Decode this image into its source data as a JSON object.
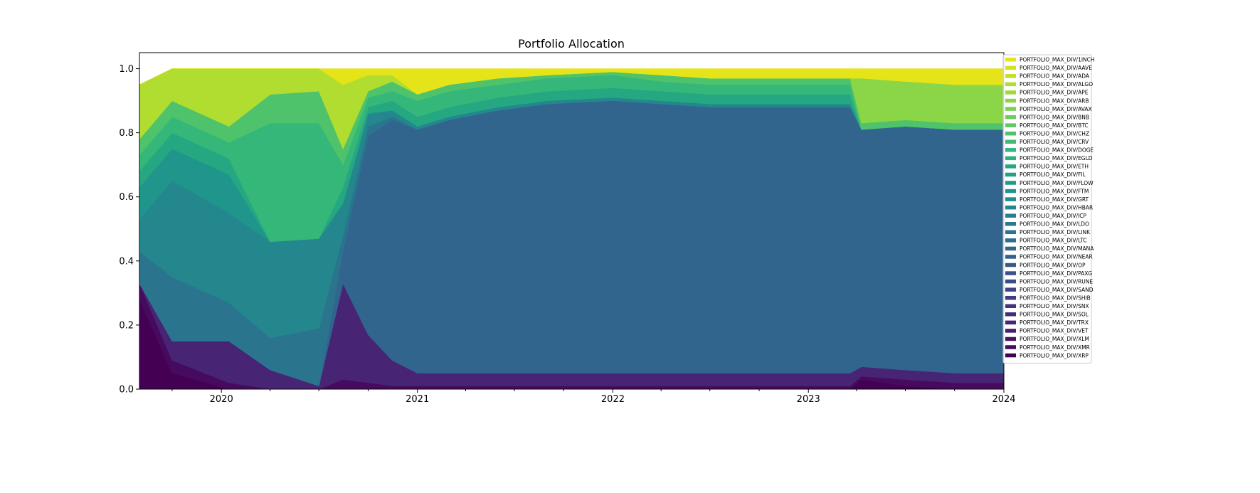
{
  "chart_data": {
    "type": "area",
    "stacked": true,
    "normalized": true,
    "title": "Portfolio Allocation",
    "xlabel": "",
    "ylabel": "",
    "xlim": [
      "2019-08-01",
      "2024-01-01"
    ],
    "ylim": [
      0,
      1.05
    ],
    "x_ticks": [
      "2020",
      "2021",
      "2022",
      "2023",
      "2024"
    ],
    "y_ticks": [
      "0.0",
      "0.2",
      "0.4",
      "0.6",
      "0.8",
      "1.0"
    ],
    "grid": false,
    "legend_position": "right",
    "dates": [
      "2019-08-01",
      "2019-10-01",
      "2020-01-15",
      "2020-04-01",
      "2020-07-01",
      "2020-08-15",
      "2020-10-01",
      "2020-11-15",
      "2021-01-01",
      "2021-03-01",
      "2021-06-01",
      "2021-09-01",
      "2022-01-01",
      "2022-04-01",
      "2022-07-01",
      "2022-10-01",
      "2023-01-01",
      "2023-03-20",
      "2023-04-10",
      "2023-07-01",
      "2023-10-01",
      "2024-01-01"
    ],
    "series": [
      {
        "name": "PORTFOLIO_MAX_DIV/XRP",
        "values": [
          0.28,
          0.05,
          0.0,
          0.0,
          0.0,
          0.0,
          0.0,
          0.0,
          0.0,
          0.0,
          0.0,
          0.0,
          0.0,
          0.0,
          0.0,
          0.0,
          0.0,
          0.0,
          0.03,
          0.01,
          0.0,
          0.0
        ]
      },
      {
        "name": "PORTFOLIO_MAX_DIV/XMR",
        "values": [
          0.05,
          0.04,
          0.02,
          0.0,
          0.0,
          0.03,
          0.02,
          0.01,
          0.01,
          0.01,
          0.01,
          0.01,
          0.01,
          0.01,
          0.01,
          0.01,
          0.01,
          0.01,
          0.01,
          0.02,
          0.02,
          0.02
        ]
      },
      {
        "name": "PORTFOLIO_MAX_DIV/XLM",
        "values": [
          0.0,
          0.0,
          0.0,
          0.0,
          0.0,
          0.0,
          0.0,
          0.0,
          0.0,
          0.0,
          0.0,
          0.0,
          0.0,
          0.0,
          0.0,
          0.0,
          0.0,
          0.0,
          0.0,
          0.0,
          0.0,
          0.0
        ]
      },
      {
        "name": "PORTFOLIO_MAX_DIV/VET",
        "values": [
          0.0,
          0.0,
          0.0,
          0.0,
          0.0,
          0.0,
          0.0,
          0.0,
          0.0,
          0.0,
          0.0,
          0.0,
          0.0,
          0.0,
          0.0,
          0.0,
          0.0,
          0.0,
          0.0,
          0.0,
          0.0,
          0.0
        ]
      },
      {
        "name": "PORTFOLIO_MAX_DIV/TRX",
        "values": [
          0.0,
          0.06,
          0.13,
          0.06,
          0.01,
          0.3,
          0.15,
          0.08,
          0.04,
          0.04,
          0.04,
          0.04,
          0.04,
          0.04,
          0.04,
          0.04,
          0.04,
          0.04,
          0.03,
          0.03,
          0.03,
          0.03
        ]
      },
      {
        "name": "PORTFOLIO_MAX_DIV/SOL",
        "values": [
          0.0,
          0.0,
          0.0,
          0.0,
          0.0,
          0.0,
          0.0,
          0.0,
          0.0,
          0.0,
          0.0,
          0.0,
          0.0,
          0.0,
          0.0,
          0.0,
          0.0,
          0.0,
          0.0,
          0.0,
          0.0,
          0.0
        ]
      },
      {
        "name": "PORTFOLIO_MAX_DIV/SNX",
        "values": [
          0.0,
          0.0,
          0.0,
          0.0,
          0.0,
          0.0,
          0.0,
          0.0,
          0.0,
          0.0,
          0.0,
          0.0,
          0.0,
          0.0,
          0.0,
          0.0,
          0.0,
          0.0,
          0.0,
          0.0,
          0.0,
          0.0
        ]
      },
      {
        "name": "PORTFOLIO_MAX_DIV/SHIB",
        "values": [
          0.0,
          0.0,
          0.0,
          0.0,
          0.0,
          0.0,
          0.0,
          0.0,
          0.0,
          0.0,
          0.0,
          0.0,
          0.0,
          0.0,
          0.0,
          0.0,
          0.0,
          0.0,
          0.0,
          0.0,
          0.0,
          0.0
        ]
      },
      {
        "name": "PORTFOLIO_MAX_DIV/SAND",
        "values": [
          0.0,
          0.0,
          0.0,
          0.0,
          0.0,
          0.0,
          0.0,
          0.0,
          0.0,
          0.0,
          0.0,
          0.0,
          0.0,
          0.0,
          0.0,
          0.0,
          0.0,
          0.0,
          0.0,
          0.0,
          0.0,
          0.0
        ]
      },
      {
        "name": "PORTFOLIO_MAX_DIV/RUNE",
        "values": [
          0.0,
          0.0,
          0.0,
          0.0,
          0.0,
          0.0,
          0.0,
          0.0,
          0.0,
          0.0,
          0.0,
          0.0,
          0.0,
          0.0,
          0.0,
          0.0,
          0.0,
          0.0,
          0.0,
          0.0,
          0.0,
          0.0
        ]
      },
      {
        "name": "PORTFOLIO_MAX_DIV/PAXG",
        "values": [
          0.0,
          0.0,
          0.0,
          0.0,
          0.0,
          0.0,
          0.0,
          0.0,
          0.0,
          0.0,
          0.0,
          0.0,
          0.0,
          0.0,
          0.0,
          0.0,
          0.0,
          0.0,
          0.0,
          0.0,
          0.0,
          0.0
        ]
      },
      {
        "name": "PORTFOLIO_MAX_DIV/OP",
        "values": [
          0.0,
          0.0,
          0.0,
          0.0,
          0.0,
          0.0,
          0.0,
          0.0,
          0.0,
          0.0,
          0.0,
          0.0,
          0.0,
          0.0,
          0.0,
          0.0,
          0.0,
          0.0,
          0.0,
          0.0,
          0.0,
          0.0
        ]
      },
      {
        "name": "PORTFOLIO_MAX_DIV/NEAR",
        "values": [
          0.0,
          0.0,
          0.0,
          0.0,
          0.0,
          0.0,
          0.0,
          0.0,
          0.0,
          0.0,
          0.0,
          0.0,
          0.0,
          0.0,
          0.0,
          0.0,
          0.0,
          0.0,
          0.0,
          0.0,
          0.0,
          0.0
        ]
      },
      {
        "name": "PORTFOLIO_MAX_DIV/MANA",
        "values": [
          0.0,
          0.0,
          0.0,
          0.0,
          0.0,
          0.1,
          0.62,
          0.75,
          0.76,
          0.79,
          0.82,
          0.84,
          0.85,
          0.84,
          0.83,
          0.83,
          0.83,
          0.83,
          0.74,
          0.76,
          0.76,
          0.76
        ]
      },
      {
        "name": "PORTFOLIO_MAX_DIV/LTC",
        "values": [
          0.0,
          0.0,
          0.0,
          0.0,
          0.0,
          0.0,
          0.0,
          0.0,
          0.0,
          0.0,
          0.0,
          0.0,
          0.0,
          0.0,
          0.0,
          0.0,
          0.0,
          0.0,
          0.0,
          0.0,
          0.0,
          0.0
        ]
      },
      {
        "name": "PORTFOLIO_MAX_DIV/LINK",
        "values": [
          0.1,
          0.2,
          0.12,
          0.1,
          0.18,
          0.05,
          0.03,
          0.01,
          0.0,
          0.0,
          0.0,
          0.0,
          0.0,
          0.0,
          0.0,
          0.0,
          0.0,
          0.0,
          0.0,
          0.0,
          0.0,
          0.0
        ]
      },
      {
        "name": "PORTFOLIO_MAX_DIV/LDO",
        "values": [
          0.0,
          0.0,
          0.0,
          0.0,
          0.0,
          0.0,
          0.0,
          0.0,
          0.0,
          0.0,
          0.0,
          0.0,
          0.0,
          0.0,
          0.0,
          0.0,
          0.0,
          0.0,
          0.0,
          0.0,
          0.0,
          0.0
        ]
      },
      {
        "name": "PORTFOLIO_MAX_DIV/ICP",
        "values": [
          0.0,
          0.0,
          0.0,
          0.0,
          0.0,
          0.0,
          0.0,
          0.0,
          0.0,
          0.0,
          0.0,
          0.0,
          0.0,
          0.0,
          0.0,
          0.0,
          0.0,
          0.0,
          0.0,
          0.0,
          0.0,
          0.0
        ]
      },
      {
        "name": "PORTFOLIO_MAX_DIV/HBAR",
        "values": [
          0.1,
          0.3,
          0.28,
          0.3,
          0.28,
          0.1,
          0.04,
          0.02,
          0.01,
          0.01,
          0.01,
          0.01,
          0.01,
          0.01,
          0.01,
          0.01,
          0.01,
          0.01,
          0.0,
          0.0,
          0.0,
          0.0
        ]
      },
      {
        "name": "PORTFOLIO_MAX_DIV/GRT",
        "values": [
          0.0,
          0.0,
          0.0,
          0.0,
          0.0,
          0.0,
          0.0,
          0.0,
          0.0,
          0.0,
          0.0,
          0.0,
          0.0,
          0.0,
          0.0,
          0.0,
          0.0,
          0.0,
          0.0,
          0.0,
          0.0,
          0.0
        ]
      },
      {
        "name": "PORTFOLIO_MAX_DIV/FTM",
        "values": [
          0.1,
          0.1,
          0.12,
          0.0,
          0.0,
          0.0,
          0.0,
          0.0,
          0.0,
          0.0,
          0.0,
          0.0,
          0.0,
          0.0,
          0.0,
          0.0,
          0.0,
          0.0,
          0.0,
          0.0,
          0.0,
          0.0
        ]
      },
      {
        "name": "PORTFOLIO_MAX_DIV/FLOW",
        "values": [
          0.0,
          0.0,
          0.0,
          0.0,
          0.0,
          0.0,
          0.0,
          0.0,
          0.0,
          0.0,
          0.0,
          0.0,
          0.0,
          0.0,
          0.0,
          0.0,
          0.0,
          0.0,
          0.0,
          0.0,
          0.0,
          0.0
        ]
      },
      {
        "name": "PORTFOLIO_MAX_DIV/FIL",
        "values": [
          0.0,
          0.0,
          0.0,
          0.0,
          0.0,
          0.0,
          0.0,
          0.0,
          0.0,
          0.0,
          0.0,
          0.0,
          0.0,
          0.0,
          0.0,
          0.0,
          0.0,
          0.0,
          0.0,
          0.0,
          0.0,
          0.0
        ]
      },
      {
        "name": "PORTFOLIO_MAX_DIV/ETH",
        "values": [
          0.05,
          0.05,
          0.05,
          0.0,
          0.0,
          0.05,
          0.02,
          0.03,
          0.03,
          0.03,
          0.03,
          0.03,
          0.03,
          0.03,
          0.03,
          0.03,
          0.03,
          0.03,
          0.0,
          0.0,
          0.0,
          0.0
        ]
      },
      {
        "name": "PORTFOLIO_MAX_DIV/EGLD",
        "values": [
          0.0,
          0.0,
          0.0,
          0.0,
          0.0,
          0.0,
          0.0,
          0.0,
          0.0,
          0.0,
          0.0,
          0.0,
          0.0,
          0.0,
          0.0,
          0.0,
          0.0,
          0.0,
          0.0,
          0.0,
          0.0,
          0.0
        ]
      },
      {
        "name": "PORTFOLIO_MAX_DIV/DOGE",
        "values": [
          0.05,
          0.05,
          0.05,
          0.37,
          0.36,
          0.07,
          0.03,
          0.03,
          0.05,
          0.05,
          0.04,
          0.04,
          0.04,
          0.03,
          0.03,
          0.03,
          0.03,
          0.03,
          0.0,
          0.0,
          0.0,
          0.0
        ]
      },
      {
        "name": "PORTFOLIO_MAX_DIV/CRV",
        "values": [
          0.0,
          0.0,
          0.0,
          0.0,
          0.0,
          0.0,
          0.0,
          0.0,
          0.0,
          0.0,
          0.0,
          0.0,
          0.0,
          0.0,
          0.0,
          0.0,
          0.0,
          0.0,
          0.0,
          0.0,
          0.0,
          0.0
        ]
      },
      {
        "name": "PORTFOLIO_MAX_DIV/CHZ",
        "values": [
          0.05,
          0.05,
          0.05,
          0.09,
          0.1,
          0.05,
          0.02,
          0.03,
          0.02,
          0.02,
          0.02,
          0.01,
          0.01,
          0.02,
          0.02,
          0.02,
          0.02,
          0.02,
          0.02,
          0.02,
          0.02,
          0.02
        ]
      },
      {
        "name": "PORTFOLIO_MAX_DIV/BTC",
        "values": [
          0.0,
          0.0,
          0.0,
          0.0,
          0.0,
          0.0,
          0.0,
          0.0,
          0.0,
          0.0,
          0.0,
          0.0,
          0.0,
          0.0,
          0.0,
          0.0,
          0.0,
          0.0,
          0.0,
          0.0,
          0.0,
          0.0
        ]
      },
      {
        "name": "PORTFOLIO_MAX_DIV/BNB",
        "values": [
          0.0,
          0.0,
          0.0,
          0.0,
          0.0,
          0.0,
          0.0,
          0.0,
          0.0,
          0.0,
          0.0,
          0.0,
          0.0,
          0.0,
          0.0,
          0.0,
          0.0,
          0.0,
          0.0,
          0.0,
          0.0,
          0.0
        ]
      },
      {
        "name": "PORTFOLIO_MAX_DIV/AVAX",
        "values": [
          0.0,
          0.0,
          0.0,
          0.0,
          0.0,
          0.0,
          0.0,
          0.0,
          0.0,
          0.0,
          0.0,
          0.0,
          0.0,
          0.0,
          0.0,
          0.0,
          0.0,
          0.0,
          0.0,
          0.0,
          0.0,
          0.0
        ]
      },
      {
        "name": "PORTFOLIO_MAX_DIV/ARB",
        "values": [
          0.0,
          0.0,
          0.0,
          0.0,
          0.0,
          0.0,
          0.0,
          0.0,
          0.0,
          0.0,
          0.0,
          0.0,
          0.0,
          0.0,
          0.0,
          0.0,
          0.0,
          0.0,
          0.14,
          0.12,
          0.12,
          0.12
        ]
      },
      {
        "name": "PORTFOLIO_MAX_DIV/APE",
        "values": [
          0.0,
          0.0,
          0.0,
          0.0,
          0.0,
          0.0,
          0.0,
          0.0,
          0.0,
          0.0,
          0.0,
          0.0,
          0.0,
          0.0,
          0.0,
          0.0,
          0.0,
          0.0,
          0.0,
          0.0,
          0.0,
          0.0
        ]
      },
      {
        "name": "PORTFOLIO_MAX_DIV/ALGO",
        "values": [
          0.17,
          0.1,
          0.18,
          0.08,
          0.07,
          0.2,
          0.05,
          0.02,
          0.0,
          0.0,
          0.0,
          0.0,
          0.0,
          0.0,
          0.0,
          0.0,
          0.0,
          0.0,
          0.0,
          0.0,
          0.0,
          0.0
        ]
      },
      {
        "name": "PORTFOLIO_MAX_DIV/ADA",
        "values": [
          0.0,
          0.0,
          0.0,
          0.0,
          0.0,
          0.0,
          0.0,
          0.0,
          0.0,
          0.0,
          0.0,
          0.0,
          0.0,
          0.0,
          0.0,
          0.0,
          0.0,
          0.0,
          0.0,
          0.0,
          0.0,
          0.0
        ]
      },
      {
        "name": "PORTFOLIO_MAX_DIV/AAVE",
        "values": [
          0.0,
          0.0,
          0.0,
          0.0,
          0.0,
          0.0,
          0.0,
          0.0,
          0.0,
          0.0,
          0.0,
          0.0,
          0.0,
          0.0,
          0.0,
          0.0,
          0.0,
          0.0,
          0.0,
          0.0,
          0.0,
          0.0
        ]
      },
      {
        "name": "PORTFOLIO_MAX_DIV/1INCH",
        "values": [
          0.0,
          0.0,
          0.0,
          0.0,
          0.0,
          0.05,
          0.02,
          0.02,
          0.08,
          0.05,
          0.03,
          0.02,
          0.01,
          0.02,
          0.03,
          0.03,
          0.03,
          0.03,
          0.03,
          0.04,
          0.05,
          0.05
        ]
      }
    ],
    "colors": [
      "#440154",
      "#460b5e",
      "#471365",
      "#481c6e",
      "#482475",
      "#472c7a",
      "#46337f",
      "#443983",
      "#414287",
      "#3e4989",
      "#3b518b",
      "#38588c",
      "#355f8d",
      "#32658e",
      "#2e6d8e",
      "#2b748e",
      "#297a8e",
      "#26818e",
      "#24878e",
      "#218e8d",
      "#1f958b",
      "#1f9a8a",
      "#21a185",
      "#25a782",
      "#2db27d",
      "#35b779",
      "#40bd72",
      "#4ec36b",
      "#5ec962",
      "#6ccd5a",
      "#7ad151",
      "#8bd646",
      "#9fda3a",
      "#b0dd2f",
      "#c2df23",
      "#d5e21a",
      "#e5e419",
      "#fde725"
    ]
  }
}
